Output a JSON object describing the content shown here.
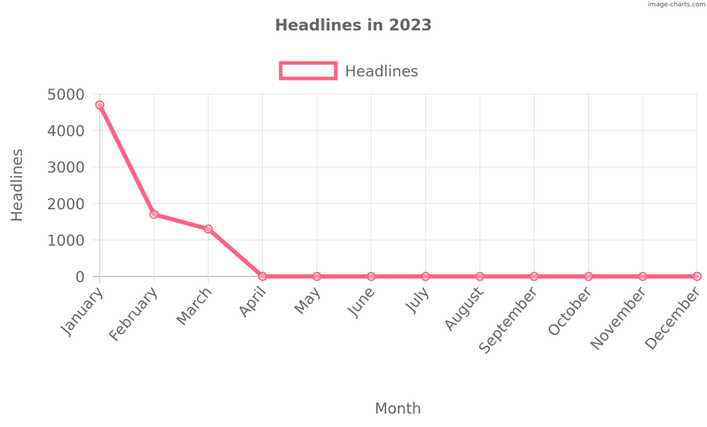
{
  "watermark": "image-charts.com",
  "chart_data": {
    "type": "line",
    "title": "Headlines in 2023",
    "xlabel": "Month",
    "ylabel": "Headlines",
    "categories": [
      "January",
      "February",
      "March",
      "April",
      "May",
      "June",
      "July",
      "August",
      "September",
      "October",
      "November",
      "December"
    ],
    "series": [
      {
        "name": "Headlines",
        "values": [
          4700,
          1700,
          1300,
          0,
          0,
          0,
          0,
          0,
          0,
          0,
          0,
          0
        ],
        "color": "#ff6384"
      }
    ],
    "ylim": [
      0,
      5000
    ],
    "yticks": [
      "0",
      "1000",
      "2000",
      "3000",
      "4000",
      "5000"
    ],
    "grid": true,
    "legend_position": "top",
    "colors": {
      "text": "#666666",
      "grid": "#e0e0e0",
      "axis": "#999999"
    }
  }
}
